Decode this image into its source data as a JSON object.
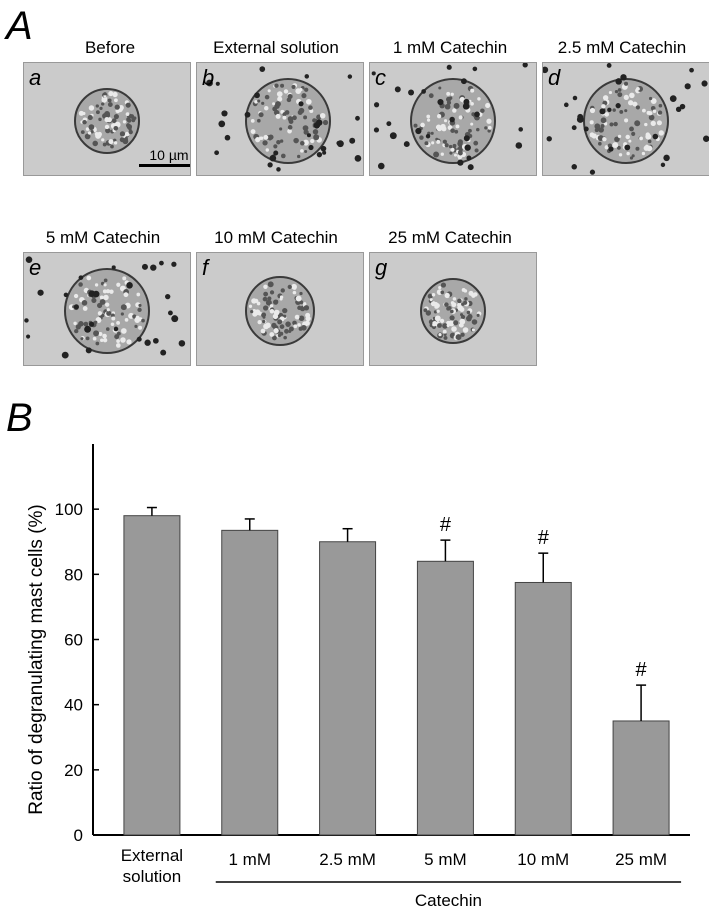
{
  "panel_a_label": "A",
  "panel_b_label": "B",
  "micrographs": [
    {
      "letter": "a",
      "title": "Before",
      "state": "intact",
      "scale": "10 µm"
    },
    {
      "letter": "b",
      "title": "External solution",
      "state": "degranulated"
    },
    {
      "letter": "c",
      "title": "1 mM Catechin",
      "state": "degranulated"
    },
    {
      "letter": "d",
      "title": "2.5 mM Catechin",
      "state": "degranulated"
    },
    {
      "letter": "e",
      "title": "5 mM Catechin",
      "state": "degranulated"
    },
    {
      "letter": "f",
      "title": "10 mM Catechin",
      "state": "partial"
    },
    {
      "letter": "g",
      "title": "25 mM Catechin",
      "state": "intact"
    }
  ],
  "chart_data": {
    "type": "bar",
    "categories": [
      "External solution",
      "1 mM",
      "2.5 mM",
      "5 mM",
      "10 mM",
      "25 mM"
    ],
    "category_lines": [
      [
        "External",
        "solution"
      ],
      [
        "1 mM"
      ],
      [
        "2.5 mM"
      ],
      [
        "5 mM"
      ],
      [
        "10 mM"
      ],
      [
        "25 mM"
      ]
    ],
    "values": [
      98,
      93.5,
      90,
      84,
      77.5,
      35
    ],
    "errors": [
      2.5,
      3.5,
      4,
      6.5,
      9,
      11
    ],
    "significance": [
      "",
      "",
      "",
      "#",
      "#",
      "#"
    ],
    "ylabel": "Ratio of degranulating mast cells  (%)",
    "group_label": "Catechin",
    "group_span": [
      1,
      5
    ],
    "yticks": [
      0,
      20,
      40,
      60,
      80,
      100
    ],
    "ylim": [
      0,
      120
    ],
    "bar_color": "#999999",
    "grid": false
  }
}
